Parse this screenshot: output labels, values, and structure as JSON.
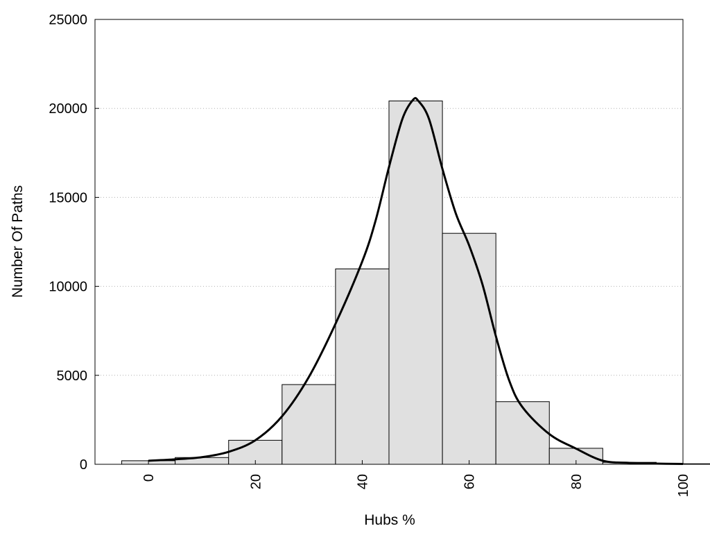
{
  "chart_data": {
    "type": "bar",
    "title": "",
    "xlabel": "Hubs %",
    "ylabel": "Number Of Paths",
    "xlim": [
      -10,
      100
    ],
    "ylim": [
      0,
      25000
    ],
    "x_ticks": [
      "0",
      "20",
      "40",
      "60",
      "80",
      "100"
    ],
    "y_ticks": [
      "0",
      "5000",
      "10000",
      "15000",
      "20000",
      "25000"
    ],
    "grid": "horizontal dotted",
    "bin_width": 10,
    "bar_color": "#e0e0e0",
    "categories": [
      0,
      10,
      20,
      30,
      40,
      50,
      60,
      70,
      80,
      90,
      100
    ],
    "values": [
      200,
      380,
      1350,
      4480,
      10980,
      20420,
      12980,
      3520,
      900,
      110,
      30
    ],
    "curve": {
      "type": "line",
      "color": "#000000",
      "x": [
        0,
        5,
        10,
        15,
        20,
        25,
        30,
        35,
        40,
        42.5,
        45,
        47.5,
        49.5,
        50.5,
        52.5,
        55,
        57.5,
        60,
        62.5,
        65,
        67.5,
        70,
        75,
        80,
        85,
        90,
        95,
        100
      ],
      "y": [
        200,
        280,
        400,
        700,
        1350,
        2700,
        4900,
        7900,
        11400,
        13700,
        16700,
        19400,
        20480,
        20420,
        19400,
        16600,
        14100,
        12300,
        10100,
        7200,
        4700,
        3200,
        1700,
        880,
        200,
        80,
        40,
        20
      ]
    }
  }
}
